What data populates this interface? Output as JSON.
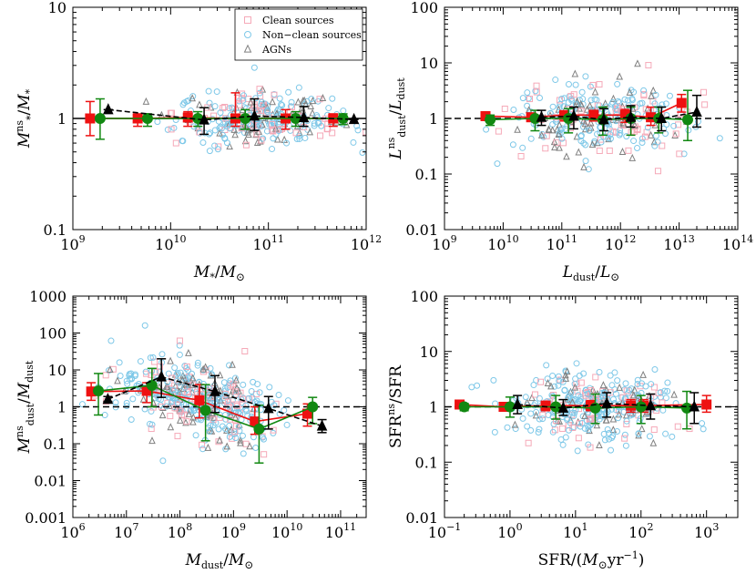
{
  "figure": {
    "legend": [
      {
        "label": "Clean sources",
        "marker": "square",
        "color": "#f5a9b8"
      },
      {
        "label": "Non−clean sources",
        "marker": "circle",
        "color": "#7ec8e8"
      },
      {
        "label": "AGNs",
        "marker": "triangle",
        "color": "#808080"
      }
    ],
    "colors": {
      "clean": "#ee1111",
      "nonclean": "#118811",
      "agn": "#000000",
      "clean_scatter": "#f5a9b8",
      "nonclean_scatter": "#7ec8e8",
      "agn_scatter": "#808080",
      "reference_line": "#000000"
    }
  },
  "chart_data": [
    {
      "id": "mstar",
      "type": "scatter",
      "xscale": "log",
      "yscale": "log",
      "xlim": [
        1000000000.0,
        1000000000000.0
      ],
      "ylim": [
        0.1,
        10
      ],
      "xticks": [
        "9",
        "10",
        "11",
        "12"
      ],
      "yticks": [
        "0.1",
        "1",
        "10"
      ],
      "xlabel": "M_*/M_⊙",
      "ylabel": "M_*^ns/M_*",
      "reference_y": 1,
      "reference_dashed": false,
      "scatter_cloud": {
        "x_center": 10.95,
        "x_spread": 0.45,
        "y_spread": 0.12
      },
      "series": [
        {
          "name": "Clean sources",
          "marker": "square",
          "x": [
            1500000000.0,
            4600000000.0,
            15000000000.0,
            46000000000.0,
            150000000000.0,
            460000000000.0
          ],
          "y": [
            1.0,
            1.0,
            1.02,
            1.0,
            1.0,
            1.0
          ],
          "err_lo": [
            0.7,
            0.85,
            0.85,
            0.85,
            0.8,
            0.85
          ],
          "err_hi": [
            1.42,
            1.1,
            1.15,
            1.7,
            1.2,
            1.1
          ]
        },
        {
          "name": "Non−clean sources",
          "marker": "circle",
          "x": [
            1900000000.0,
            5800000000.0,
            19000000000.0,
            58000000000.0,
            190000000000.0,
            580000000000.0
          ],
          "y": [
            1.0,
            1.0,
            1.0,
            1.0,
            1.0,
            1.0
          ],
          "err_lo": [
            0.65,
            0.85,
            0.85,
            0.8,
            0.85,
            0.88
          ],
          "err_hi": [
            1.5,
            1.1,
            1.15,
            1.2,
            1.15,
            1.1
          ]
        },
        {
          "name": "AGNs",
          "marker": "triangle",
          "x": [
            2300000000.0,
            22000000000.0,
            72000000000.0,
            230000000000.0,
            750000000000.0
          ],
          "y": [
            1.2,
            0.97,
            1.05,
            1.02,
            0.98
          ],
          "err_lo": [
            1.2,
            0.72,
            0.78,
            0.85,
            0.98
          ],
          "err_hi": [
            1.2,
            1.25,
            1.5,
            1.28,
            0.98
          ]
        }
      ]
    },
    {
      "id": "ldust",
      "type": "scatter",
      "xscale": "log",
      "yscale": "log",
      "xlim": [
        1000000000.0,
        100000000000000.0
      ],
      "ylim": [
        0.01,
        100
      ],
      "xticks": [
        "9",
        "10",
        "11",
        "12",
        "13",
        "14"
      ],
      "yticks": [
        "0.01",
        "0.1",
        "1",
        "10",
        "100"
      ],
      "xlabel": "L_dust/L_⊙",
      "ylabel": "L_dust^ns/L_dust",
      "reference_y": 1,
      "reference_dashed": true,
      "scatter_cloud": {
        "x_center": 11.6,
        "x_spread": 0.75,
        "y_spread": 0.32
      },
      "series": [
        {
          "name": "Clean sources",
          "marker": "square",
          "x": [
            5000000000.0,
            30000000000.0,
            110000000000.0,
            350000000000.0,
            1200000000000.0,
            3300000000000.0,
            11000000000000.0
          ],
          "y": [
            1.1,
            1.05,
            1.15,
            1.15,
            1.15,
            1.05,
            1.9
          ],
          "err_lo": [
            1.0,
            0.9,
            0.9,
            0.9,
            0.85,
            0.75,
            1.3
          ],
          "err_hi": [
            1.2,
            1.15,
            1.35,
            1.4,
            1.45,
            1.6,
            2.7
          ]
        },
        {
          "name": "Non−clean sources",
          "marker": "circle",
          "x": [
            6000000000.0,
            35000000000.0,
            130000000000.0,
            500000000000.0,
            1500000000000.0,
            4500000000000.0,
            14000000000000.0
          ],
          "y": [
            0.95,
            1.0,
            1.0,
            0.95,
            1.0,
            1.0,
            0.95
          ],
          "err_lo": [
            0.75,
            0.6,
            0.55,
            0.5,
            0.5,
            0.55,
            0.4
          ],
          "err_hi": [
            1.15,
            1.4,
            1.5,
            1.6,
            1.6,
            1.6,
            3.2
          ]
        },
        {
          "name": "AGNs",
          "marker": "triangle",
          "x": [
            45000000000.0,
            160000000000.0,
            520000000000.0,
            1500000000000.0,
            5000000000000.0,
            20000000000000.0
          ],
          "y": [
            1.05,
            1.1,
            0.95,
            1.05,
            1.0,
            1.3
          ],
          "err_lo": [
            0.75,
            0.65,
            0.6,
            0.7,
            0.6,
            0.7
          ],
          "err_hi": [
            1.4,
            1.6,
            1.5,
            1.7,
            1.6,
            2.6
          ]
        }
      ]
    },
    {
      "id": "mdust",
      "type": "scatter",
      "xscale": "log",
      "yscale": "log",
      "xlim": [
        1000000.0,
        300000000000.0
      ],
      "ylim": [
        0.001,
        1000
      ],
      "xticks": [
        "6",
        "7",
        "8",
        "9",
        "10",
        "11"
      ],
      "yticks": [
        "0.001",
        "0.01",
        "0.1",
        "1",
        "10",
        "100",
        "1000"
      ],
      "xlabel": "M_dust/M_⊙",
      "ylabel": "M_dust^ns/M_dust",
      "reference_y": 1,
      "reference_dashed": true,
      "scatter_cloud": {
        "x_center": 8.3,
        "x_spread": 0.75,
        "y_spread": 0.5
      },
      "series": [
        {
          "name": "Clean sources",
          "marker": "square",
          "x": [
            2200000.0,
            24000000.0,
            230000000.0,
            2500000000.0,
            24000000000.0
          ],
          "y": [
            2.6,
            2.7,
            1.5,
            0.4,
            0.65
          ],
          "err_lo": [
            1.5,
            1.3,
            0.5,
            0.18,
            0.3
          ],
          "err_hi": [
            4.5,
            4.5,
            4.0,
            1.0,
            1.2
          ]
        },
        {
          "name": "Non−clean sources",
          "marker": "circle",
          "x": [
            3000000.0,
            30000000.0,
            300000000.0,
            3000000000.0,
            30000000000.0
          ],
          "y": [
            2.7,
            3.8,
            0.8,
            0.25,
            1.0
          ],
          "err_lo": [
            0.6,
            1.0,
            0.12,
            0.03,
            0.35
          ],
          "err_hi": [
            8.0,
            11.0,
            4.0,
            1.1,
            1.8
          ]
        },
        {
          "name": "AGNs",
          "marker": "triangle",
          "x": [
            4500000.0,
            45000000.0,
            450000000.0,
            4500000000.0,
            45000000000.0
          ],
          "y": [
            1.6,
            6.5,
            2.6,
            0.9,
            0.3
          ],
          "err_lo": [
            1.4,
            1.8,
            0.7,
            0.25,
            0.2
          ],
          "err_hi": [
            1.9,
            20.0,
            7.0,
            1.9,
            0.45
          ]
        }
      ]
    },
    {
      "id": "sfr",
      "type": "scatter",
      "xscale": "log",
      "yscale": "log",
      "xlim": [
        0.1,
        3000
      ],
      "ylim": [
        0.01,
        100
      ],
      "xticks": [
        "−1",
        "0",
        "1",
        "2",
        "3"
      ],
      "yticks": [
        "0.01",
        "0.1",
        "1",
        "10",
        "100"
      ],
      "xlabel": "SFR/(M_⊙yr⁻¹)",
      "ylabel": "SFR^ns/SFR",
      "reference_y": 1,
      "reference_dashed": true,
      "scatter_cloud": {
        "x_center": 1.3,
        "x_spread": 0.6,
        "y_spread": 0.3
      },
      "series": [
        {
          "name": "Clean sources",
          "marker": "square",
          "x": [
            0.17,
            0.8,
            3.5,
            17,
            70,
            110,
            1000
          ],
          "y": [
            1.1,
            1.0,
            1.05,
            1.05,
            1.05,
            1.05,
            1.1
          ],
          "err_lo": [
            1.0,
            0.9,
            0.85,
            0.85,
            0.8,
            0.8,
            0.8
          ],
          "err_hi": [
            1.2,
            1.15,
            1.25,
            1.3,
            1.35,
            1.35,
            1.6
          ]
        },
        {
          "name": "Non−clean sources",
          "marker": "circle",
          "x": [
            0.2,
            1.0,
            5,
            20,
            100,
            500
          ],
          "y": [
            1.0,
            1.0,
            1.0,
            0.95,
            1.0,
            0.95
          ],
          "err_lo": [
            0.85,
            0.65,
            0.6,
            0.5,
            0.5,
            0.4
          ],
          "err_hi": [
            1.15,
            1.5,
            1.6,
            1.7,
            1.6,
            1.9
          ]
        },
        {
          "name": "AGNs",
          "marker": "triangle",
          "x": [
            1.3,
            6.5,
            30,
            140,
            650
          ],
          "y": [
            1.1,
            0.95,
            1.15,
            1.05,
            1.0
          ],
          "err_lo": [
            0.75,
            0.7,
            0.65,
            0.6,
            0.5
          ],
          "err_hi": [
            1.6,
            1.35,
            1.8,
            1.7,
            1.8
          ]
        }
      ]
    }
  ]
}
